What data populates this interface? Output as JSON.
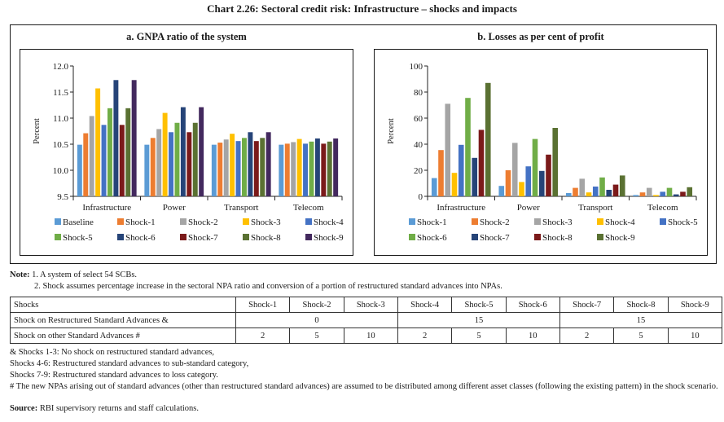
{
  "title": "Chart 2.26: Sectoral credit risk: Infrastructure – shocks and impacts",
  "chart_data": [
    {
      "type": "bar",
      "title": "a. GNPA ratio of the system",
      "xlabel": "",
      "ylabel": "Percent",
      "ylim": [
        9.5,
        12.0
      ],
      "yticks": [
        "9.5",
        "10.0",
        "10.5",
        "11.0",
        "11.5",
        "12.0"
      ],
      "grid": false,
      "legend_position": "bottom",
      "categories": [
        "Infrastructure",
        "Power",
        "Transport",
        "Telecom"
      ],
      "series": [
        {
          "name": "Baseline",
          "color": "#5B9BD5",
          "values": [
            10.49,
            10.49,
            10.49,
            10.49
          ]
        },
        {
          "name": "Shock-1",
          "color": "#ED7D31",
          "values": [
            10.71,
            10.62,
            10.53,
            10.51
          ]
        },
        {
          "name": "Shock-2",
          "color": "#A5A5A5",
          "values": [
            11.04,
            10.79,
            10.59,
            10.54
          ]
        },
        {
          "name": "Shock-3",
          "color": "#FFC000",
          "values": [
            11.57,
            11.1,
            10.7,
            10.6
          ]
        },
        {
          "name": "Shock-4",
          "color": "#4472C4",
          "values": [
            10.87,
            10.73,
            10.56,
            10.51
          ]
        },
        {
          "name": "Shock-5",
          "color": "#70AD47",
          "values": [
            11.19,
            10.91,
            10.62,
            10.55
          ]
        },
        {
          "name": "Shock-6",
          "color": "#264478",
          "values": [
            11.73,
            11.21,
            10.73,
            10.61
          ]
        },
        {
          "name": "Shock-7",
          "color": "#7B1A1A",
          "values": [
            10.87,
            10.73,
            10.56,
            10.51
          ]
        },
        {
          "name": "Shock-8",
          "color": "#5A7132",
          "values": [
            11.19,
            10.91,
            10.62,
            10.55
          ]
        },
        {
          "name": "Shock-9",
          "color": "#43295E",
          "values": [
            11.73,
            11.21,
            10.73,
            10.61
          ]
        }
      ]
    },
    {
      "type": "bar",
      "title": "b. Losses as per cent of profit",
      "xlabel": "",
      "ylabel": "Percent",
      "ylim": [
        0,
        100
      ],
      "yticks": [
        "0",
        "20",
        "40",
        "60",
        "80",
        "100"
      ],
      "grid": false,
      "legend_position": "bottom",
      "categories": [
        "Infrastructure",
        "Power",
        "Transport",
        "Telecom"
      ],
      "series": [
        {
          "name": "Shock-1",
          "color": "#5B9BD5",
          "values": [
            14,
            8,
            2.5,
            1
          ]
        },
        {
          "name": "Shock-2",
          "color": "#ED7D31",
          "values": [
            35.5,
            20,
            6.5,
            3
          ]
        },
        {
          "name": "Shock-3",
          "color": "#A5A5A5",
          "values": [
            71,
            41,
            13.5,
            6.5
          ]
        },
        {
          "name": "Shock-4",
          "color": "#FFC000",
          "values": [
            18,
            11,
            3,
            1
          ]
        },
        {
          "name": "Shock-5",
          "color": "#4472C4",
          "values": [
            39.5,
            23,
            7.5,
            3.5
          ]
        },
        {
          "name": "Shock-6",
          "color": "#70AD47",
          "values": [
            75.5,
            44,
            14.5,
            6.5
          ]
        },
        {
          "name": "Shock-7",
          "color": "#264478",
          "values": [
            29.5,
            19.5,
            5,
            1.5
          ]
        },
        {
          "name": "Shock-8",
          "color": "#7B1A1A",
          "values": [
            51,
            32,
            9,
            3.5
          ]
        },
        {
          "name": "Shock-9",
          "color": "#5A7132",
          "values": [
            87,
            52.5,
            16,
            7
          ]
        }
      ]
    }
  ],
  "notes": {
    "label": "Note:",
    "items": [
      "1. A system of select 54 SCBs.",
      "2. Shock assumes percentage increase in the sectoral NPA ratio and conversion of a portion of restructured standard advances into NPAs."
    ]
  },
  "table": {
    "header": [
      "Shocks",
      "Shock-1",
      "Shock-2",
      "Shock-3",
      "Shock-4",
      "Shock-5",
      "Shock-6",
      "Shock-7",
      "Shock-8",
      "Shock-9"
    ],
    "row_restructured": {
      "label": "Shock on Restructured Standard Advances &",
      "groups": [
        "0",
        "15",
        "15"
      ]
    },
    "row_other": {
      "label": "Shock on other Standard Advances #",
      "values": [
        "2",
        "5",
        "10",
        "2",
        "5",
        "10",
        "2",
        "5",
        "10"
      ]
    }
  },
  "footnotes": [
    "& Shocks 1-3: No shock on restructured standard advances,",
    "Shocks 4-6: Restructured standard advances to sub-standard category,",
    "Shocks 7-9: Restructured standard advances to loss category.",
    "# The new NPAs arising out of standard advances (other than restructured standard advances) are assumed to be distributed among different asset classes (following the existing pattern) in the shock scenario."
  ],
  "source": {
    "label": "Source:",
    "text": "RBI supervisory returns and staff calculations."
  }
}
